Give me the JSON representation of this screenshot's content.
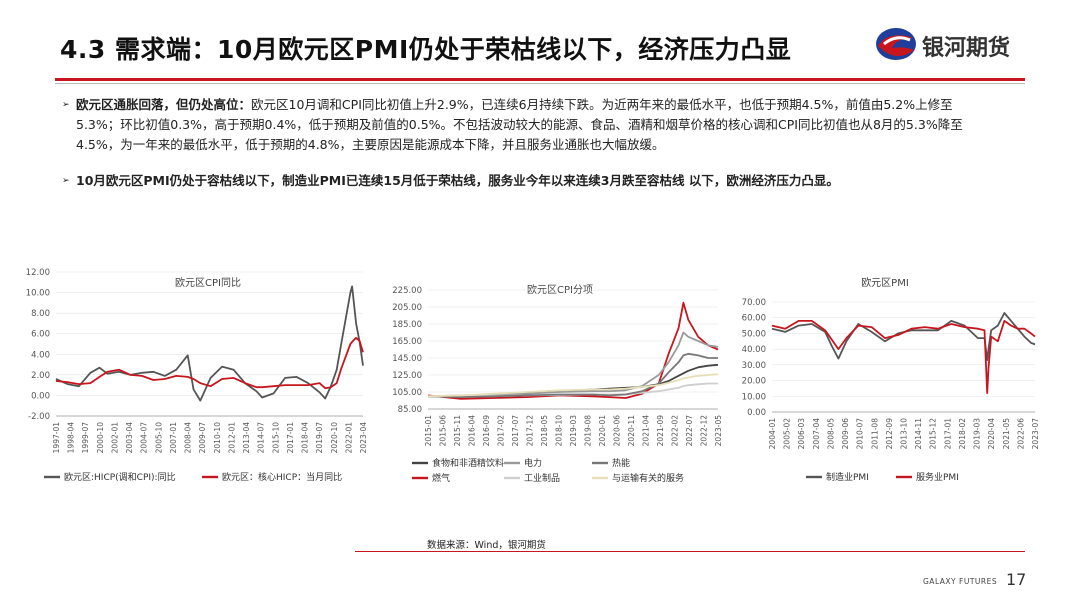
{
  "slide": {
    "title": "4.3 需求端：10月欧元区PMI仍处于荣枯线以下，经济压力凸显",
    "logo_text": "银河期货",
    "bullet1_bold": "欧元区通胀回落，但仍处高位：",
    "bullet1_text": "欧元区10月调和CPI同比初值上升2.9%，已连续6月持续下跌。为近两年来的最低水平，也低于预期4.5%，前值由5.2%上修至5.3%；环比初值0.3%，高于预期0.4%，低于预期及前值的0.5%。不包括波动较大的能源、食品、酒精和烟草价格的核心调和CPI同比初值也从8月的5.3%降至4.5%，为一年来的最低水平，低于预期的4.8%，主要原因是能源成本下降，并且服务业通胀也大幅放缓。",
    "bullet2_bold": "10月欧元区PMI仍处于容枯线以下，制造业PMI已连续15月低于荣枯线，服务业今年以来连续3月跌至容枯线 以下，欧洲经济压力凸显。",
    "source": "数据来源：Wind，银河期货",
    "footer": "GALAXY FUTURES",
    "page_number": "17"
  },
  "chart_data": [
    {
      "type": "line",
      "title": "欧元区CPI同比",
      "ylim": [
        -2,
        12
      ],
      "yticks": [
        "12.00",
        "10.00",
        "8.00",
        "6.00",
        "4.00",
        "2.00",
        "0.00",
        "-2.00"
      ],
      "xticks": [
        "1997-01",
        "1998-04",
        "1999-07",
        "2000-10",
        "2002-01",
        "2003-04",
        "2004-07",
        "2005-10",
        "2007-01",
        "2008-04",
        "2009-07",
        "2010-10",
        "2012-01",
        "2013-04",
        "2014-07",
        "2015-10",
        "2017-01",
        "2018-04",
        "2019-07",
        "2020-10",
        "2022-01",
        "2023-04"
      ],
      "x": [
        1997.0,
        1998.0,
        1999.0,
        2000.0,
        2000.8,
        2001.5,
        2002.5,
        2003.5,
        2004.5,
        2005.5,
        2006.5,
        2007.5,
        2008.5,
        2009.0,
        2009.6,
        2010.5,
        2011.5,
        2012.5,
        2013.5,
        2014.5,
        2015.0,
        2016.0,
        2017.0,
        2018.0,
        2019.0,
        2020.0,
        2020.5,
        2021.0,
        2021.5,
        2021.9,
        2022.3,
        2022.7,
        2022.85,
        2023.2,
        2023.5,
        2023.8
      ],
      "series": [
        {
          "name": "欧元区:HICP(调和CPI):同比",
          "color": "#555555",
          "values": [
            1.6,
            1.1,
            0.9,
            2.2,
            2.7,
            2.1,
            2.3,
            2.0,
            2.2,
            2.3,
            1.9,
            2.5,
            3.9,
            0.6,
            -0.5,
            1.7,
            2.8,
            2.5,
            1.2,
            0.4,
            -0.2,
            0.2,
            1.7,
            1.8,
            1.2,
            0.3,
            -0.3,
            0.9,
            2.5,
            5.0,
            7.5,
            10.0,
            10.6,
            7.0,
            5.2,
            2.9
          ]
        },
        {
          "name": "欧元区：核心HICP：当月同比",
          "color": "#c8161e",
          "values": [
            1.4,
            1.3,
            1.1,
            1.2,
            1.8,
            2.3,
            2.5,
            2.0,
            1.9,
            1.5,
            1.6,
            1.9,
            1.8,
            1.6,
            1.2,
            0.9,
            1.6,
            1.7,
            1.2,
            0.8,
            0.8,
            0.9,
            1.0,
            1.0,
            1.0,
            1.2,
            0.7,
            0.8,
            1.2,
            2.6,
            3.8,
            5.0,
            5.2,
            5.6,
            5.3,
            4.2
          ]
        }
      ]
    },
    {
      "type": "line",
      "title": "欧元区CPI分项",
      "ylim": [
        85,
        225
      ],
      "yticks": [
        "225.00",
        "205.00",
        "185.00",
        "165.00",
        "145.00",
        "125.00",
        "105.00",
        "85.00"
      ],
      "xticks": [
        "2015-01",
        "2015-06",
        "2015-11",
        "2016-04",
        "2016-09",
        "2017-02",
        "2017-07",
        "2017-12",
        "2018-05",
        "2018-10",
        "2019-03",
        "2019-08",
        "2020-01",
        "2020-06",
        "2020-11",
        "2021-04",
        "2021-09",
        "2022-02",
        "2022-07",
        "2022-12",
        "2023-05"
      ],
      "x": [
        2015.0,
        2016.0,
        2017.0,
        2018.0,
        2019.0,
        2020.0,
        2020.5,
        2021.0,
        2021.5,
        2022.0,
        2022.3,
        2022.6,
        2022.75,
        2022.9,
        2023.2,
        2023.5,
        2023.8
      ],
      "series": [
        {
          "name": "食物和非酒精饮料",
          "color": "#444444",
          "values": [
            100,
            100.5,
            102,
            104,
            106,
            108,
            109,
            110,
            111,
            114,
            118,
            124,
            127,
            130,
            134,
            136,
            137
          ]
        },
        {
          "name": "燃气",
          "color": "#c8161e",
          "values": [
            101,
            97,
            98,
            99,
            101,
            100,
            99,
            98,
            103,
            115,
            150,
            180,
            210,
            190,
            170,
            160,
            155
          ]
        },
        {
          "name": "电力",
          "color": "#9a9a9a",
          "values": [
            100,
            101,
            102,
            103,
            105,
            106,
            106,
            107,
            112,
            125,
            140,
            160,
            175,
            170,
            165,
            160,
            158
          ]
        },
        {
          "name": "工业制品",
          "color": "#cfcfcf",
          "values": [
            100,
            100,
            100.5,
            101,
            101.5,
            102,
            102,
            102.5,
            104,
            106,
            108,
            110,
            112,
            113,
            114,
            115,
            115
          ]
        },
        {
          "name": "热能",
          "color": "#777777",
          "values": [
            100,
            99,
            100,
            101,
            102,
            102,
            101,
            102,
            106,
            115,
            128,
            140,
            148,
            150,
            148,
            145,
            145
          ]
        },
        {
          "name": "与运输有关的服务",
          "color": "#e6dfb8",
          "values": [
            100,
            101,
            103,
            105,
            107,
            108,
            108,
            109,
            111,
            113,
            116,
            119,
            121,
            122,
            124,
            125,
            126
          ]
        }
      ]
    },
    {
      "type": "line",
      "title": "欧元区PMI",
      "ylim": [
        0,
        70
      ],
      "yticks": [
        "70.00",
        "60.00",
        "50.00",
        "40.00",
        "30.00",
        "20.00",
        "10.00",
        "0.00"
      ],
      "xticks": [
        "2004-01",
        "2005-02",
        "2006-03",
        "2007-04",
        "2008-05",
        "2009-06",
        "2010-07",
        "2011-08",
        "2012-09",
        "2013-10",
        "2014-11",
        "2015-12",
        "2017-01",
        "2018-02",
        "2019-03",
        "2020-04",
        "2021-05",
        "2022-06",
        "2023-07"
      ],
      "x": [
        2004.0,
        2005.0,
        2006.0,
        2007.0,
        2008.0,
        2008.5,
        2009.0,
        2009.6,
        2010.5,
        2011.5,
        2012.5,
        2013.5,
        2014.5,
        2015.5,
        2016.5,
        2017.5,
        2018.5,
        2019.5,
        2020.0,
        2020.2,
        2020.3,
        2020.5,
        2021.0,
        2021.5,
        2022.0,
        2022.5,
        2023.0,
        2023.5,
        2023.8
      ],
      "series": [
        {
          "name": "制造业PMI",
          "color": "#555555",
          "values": [
            53,
            51,
            55,
            56,
            51,
            42,
            34,
            45,
            56,
            51,
            45,
            50,
            52,
            52,
            52,
            58,
            55,
            47,
            47,
            33,
            40,
            52,
            55,
            63,
            58,
            53,
            48,
            44,
            43
          ]
        },
        {
          "name": "服务业PMI",
          "color": "#c8161e",
          "values": [
            55,
            53,
            58,
            58,
            52,
            46,
            40,
            47,
            55,
            54,
            47,
            49,
            53,
            54,
            53,
            56,
            54,
            53,
            52,
            12,
            28,
            48,
            45,
            58,
            55,
            53,
            53,
            50,
            48
          ]
        }
      ]
    }
  ]
}
